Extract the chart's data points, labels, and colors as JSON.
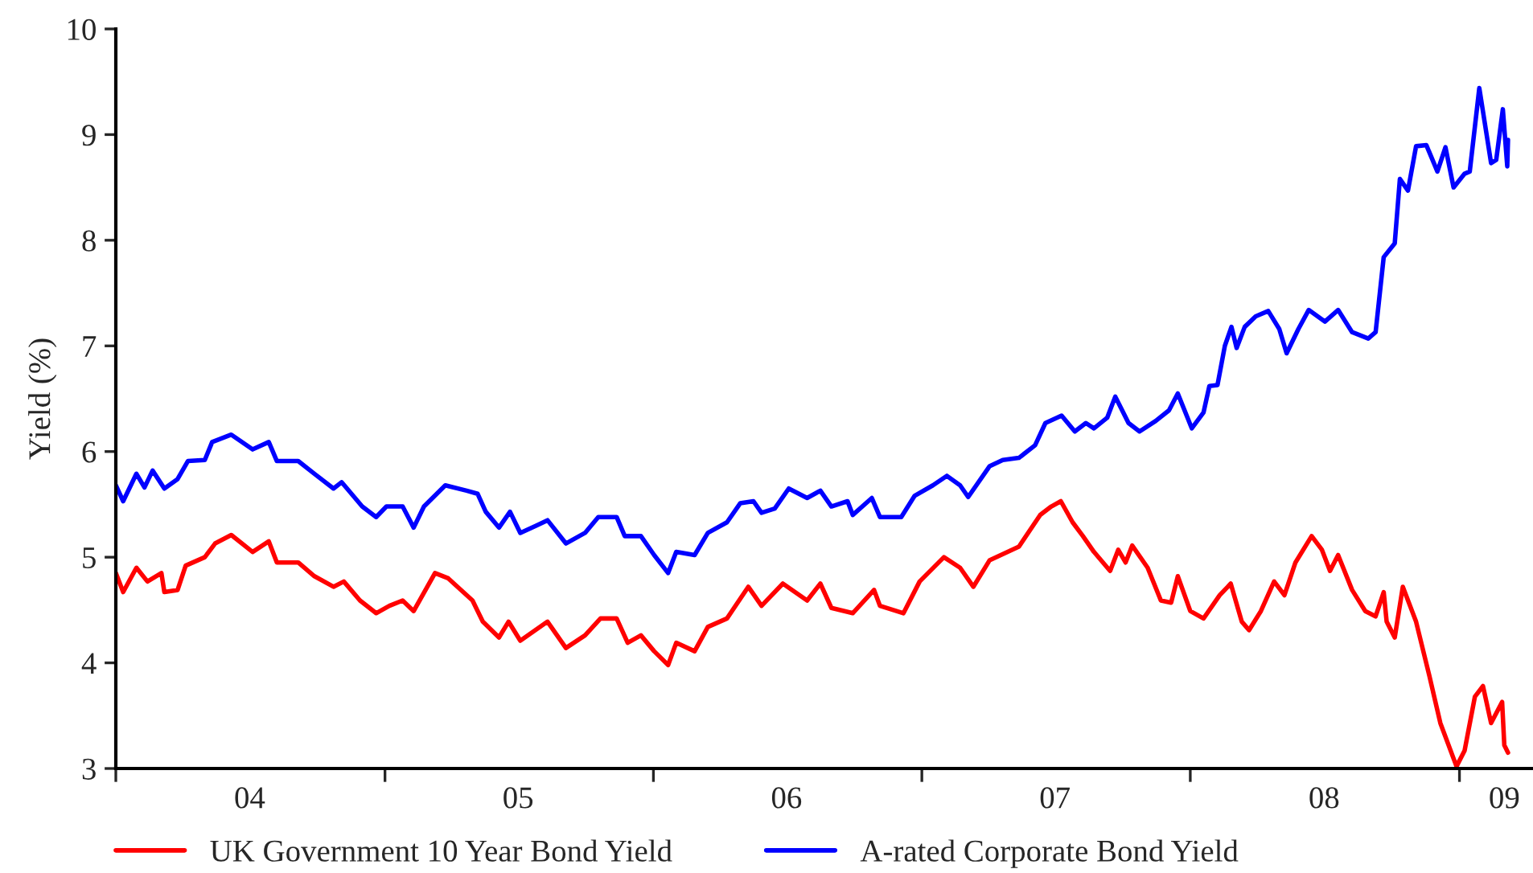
{
  "chart_data": {
    "type": "line",
    "ylabel": "Yield (%)",
    "xlim": [
      "2004-01-01",
      "2009-04-11"
    ],
    "ylim": [
      3,
      10
    ],
    "yticks": [
      3,
      4,
      5,
      6,
      7,
      8,
      9,
      10
    ],
    "xticks": [
      {
        "value": "2004-01-01",
        "label": null
      },
      {
        "value": "2005-01-01",
        "label": null
      },
      {
        "value": "2006-01-01",
        "label": null
      },
      {
        "value": "2007-01-01",
        "label": null
      },
      {
        "value": "2008-01-01",
        "label": null
      },
      {
        "value": "2009-01-01",
        "label": null
      },
      {
        "value": "2004-07-01",
        "label": "04"
      },
      {
        "value": "2005-07-01",
        "label": "05"
      },
      {
        "value": "2006-07-01",
        "label": "06"
      },
      {
        "value": "2007-07-01",
        "label": "07"
      },
      {
        "value": "2008-07-01",
        "label": "08"
      },
      {
        "value": "2009-03-03",
        "label": "09"
      }
    ],
    "grid": false,
    "legend": "bottom",
    "line_style": "solid",
    "marker": "none",
    "series": [
      {
        "name": "UK Government 10 Year Bond Yield",
        "color": "#ff0000",
        "x": [
          "2004-01-01",
          "2004-01-11",
          "2004-01-29",
          "2004-02-13",
          "2004-03-03",
          "2004-03-07",
          "2004-03-25",
          "2004-04-05",
          "2004-05-01",
          "2004-05-15",
          "2004-06-06",
          "2004-07-05",
          "2004-07-27",
          "2004-08-07",
          "2004-09-05",
          "2004-09-27",
          "2004-10-23",
          "2004-11-06",
          "2004-11-28",
          "2004-12-20",
          "2005-01-07",
          "2005-01-25",
          "2005-02-09",
          "2005-03-10",
          "2005-03-28",
          "2005-04-30",
          "2005-05-14",
          "2005-06-05",
          "2005-06-18",
          "2005-07-04",
          "2005-08-10",
          "2005-09-04",
          "2005-09-30",
          "2005-10-21",
          "2005-11-12",
          "2005-11-27",
          "2005-12-15",
          "2006-01-02",
          "2006-01-21",
          "2006-02-01",
          "2006-02-26",
          "2006-03-16",
          "2006-04-11",
          "2006-05-10",
          "2006-05-28",
          "2006-06-26",
          "2006-07-29",
          "2006-08-16",
          "2006-08-31",
          "2006-09-29",
          "2006-10-28",
          "2006-11-05",
          "2006-12-07",
          "2006-12-29",
          "2007-01-31",
          "2007-02-22",
          "2007-03-12",
          "2007-04-03",
          "2007-05-13",
          "2007-06-11",
          "2007-06-26",
          "2007-07-09",
          "2007-07-25",
          "2007-08-08",
          "2007-08-23",
          "2007-09-14",
          "2007-09-25",
          "2007-10-05",
          "2007-10-14",
          "2007-11-04",
          "2007-11-22",
          "2007-12-06",
          "2007-12-15",
          "2008-01-01",
          "2008-01-19",
          "2008-02-10",
          "2008-02-25",
          "2008-03-11",
          "2008-03-21",
          "2008-04-06",
          "2008-04-24",
          "2008-05-08",
          "2008-05-23",
          "2008-06-14",
          "2008-06-28",
          "2008-07-09",
          "2008-07-20",
          "2008-08-08",
          "2008-08-26",
          "2008-09-09",
          "2008-09-20",
          "2008-09-24",
          "2008-10-05",
          "2008-10-16",
          "2008-11-03",
          "2008-11-21",
          "2008-12-06",
          "2008-12-28",
          "2009-01-08",
          "2009-01-22",
          "2009-02-02",
          "2009-02-13",
          "2009-02-28",
          "2009-03-03",
          "2009-03-08"
        ],
        "values": [
          4.85,
          4.67,
          4.9,
          4.77,
          4.85,
          4.67,
          4.69,
          4.92,
          5.0,
          5.13,
          5.21,
          5.05,
          5.15,
          4.95,
          4.95,
          4.82,
          4.72,
          4.77,
          4.59,
          4.47,
          4.54,
          4.59,
          4.49,
          4.85,
          4.8,
          4.59,
          4.39,
          4.24,
          4.39,
          4.21,
          4.39,
          4.14,
          4.26,
          4.42,
          4.42,
          4.19,
          4.26,
          4.11,
          3.98,
          4.19,
          4.11,
          4.34,
          4.42,
          4.72,
          4.54,
          4.75,
          4.59,
          4.75,
          4.52,
          4.47,
          4.69,
          4.54,
          4.47,
          4.77,
          5.0,
          4.9,
          4.72,
          4.97,
          5.1,
          5.4,
          5.48,
          5.53,
          5.33,
          5.2,
          5.05,
          4.87,
          5.07,
          4.95,
          5.11,
          4.9,
          4.59,
          4.57,
          4.82,
          4.49,
          4.42,
          4.64,
          4.75,
          4.39,
          4.31,
          4.49,
          4.77,
          4.64,
          4.95,
          5.2,
          5.07,
          4.87,
          5.02,
          4.69,
          4.49,
          4.44,
          4.67,
          4.39,
          4.24,
          4.72,
          4.39,
          3.88,
          3.43,
          3.02,
          3.17,
          3.68,
          3.78,
          3.43,
          3.63,
          3.22,
          3.15
        ]
      },
      {
        "name": "A-rated Corporate Bond Yield",
        "color": "#0000ff",
        "x": [
          "2004-01-01",
          "2004-01-11",
          "2004-01-29",
          "2004-02-09",
          "2004-02-20",
          "2004-03-07",
          "2004-03-25",
          "2004-04-08",
          "2004-05-01",
          "2004-05-11",
          "2004-06-06",
          "2004-07-05",
          "2004-07-27",
          "2004-08-07",
          "2004-09-05",
          "2004-09-27",
          "2004-10-23",
          "2004-11-03",
          "2004-12-01",
          "2004-12-20",
          "2005-01-03",
          "2005-01-25",
          "2005-02-09",
          "2005-02-23",
          "2005-03-24",
          "2005-04-22",
          "2005-05-07",
          "2005-05-18",
          "2005-06-05",
          "2005-06-20",
          "2005-07-04",
          "2005-07-26",
          "2005-08-10",
          "2005-09-04",
          "2005-09-30",
          "2005-10-18",
          "2005-11-12",
          "2005-11-23",
          "2005-12-15",
          "2006-01-02",
          "2006-01-21",
          "2006-02-01",
          "2006-02-26",
          "2006-03-16",
          "2006-04-11",
          "2006-04-29",
          "2006-05-17",
          "2006-05-28",
          "2006-06-15",
          "2006-07-04",
          "2006-07-29",
          "2006-08-16",
          "2006-08-31",
          "2006-09-22",
          "2006-09-29",
          "2006-10-25",
          "2006-11-05",
          "2006-12-04",
          "2006-12-22",
          "2007-01-16",
          "2007-02-04",
          "2007-02-22",
          "2007-03-05",
          "2007-04-03",
          "2007-04-21",
          "2007-05-13",
          "2007-06-04",
          "2007-06-18",
          "2007-07-10",
          "2007-07-28",
          "2007-08-12",
          "2007-08-23",
          "2007-09-10",
          "2007-09-21",
          "2007-10-09",
          "2007-10-24",
          "2007-11-15",
          "2007-12-03",
          "2007-12-15",
          "2008-01-03",
          "2008-01-19",
          "2008-01-27",
          "2008-02-07",
          "2008-02-17",
          "2008-02-26",
          "2008-03-04",
          "2008-03-15",
          "2008-03-30",
          "2008-04-16",
          "2008-05-01",
          "2008-05-11",
          "2008-05-27",
          "2008-06-10",
          "2008-07-02",
          "2008-07-20",
          "2008-08-08",
          "2008-08-30",
          "2008-09-09",
          "2008-09-20",
          "2008-10-05",
          "2008-10-12",
          "2008-10-23",
          "2008-11-03",
          "2008-11-17",
          "2008-12-02",
          "2008-12-13",
          "2008-12-24",
          "2009-01-08",
          "2009-01-15",
          "2009-01-28",
          "2009-02-04",
          "2009-02-13",
          "2009-02-20",
          "2009-03-01",
          "2009-03-07",
          "2009-03-08"
        ],
        "values": [
          5.68,
          5.53,
          5.79,
          5.66,
          5.82,
          5.65,
          5.74,
          5.91,
          5.92,
          6.09,
          6.16,
          6.02,
          6.09,
          5.91,
          5.91,
          5.79,
          5.65,
          5.71,
          5.48,
          5.38,
          5.48,
          5.48,
          5.28,
          5.48,
          5.68,
          5.63,
          5.6,
          5.43,
          5.28,
          5.43,
          5.23,
          5.3,
          5.35,
          5.13,
          5.23,
          5.38,
          5.38,
          5.2,
          5.2,
          5.02,
          4.85,
          5.05,
          5.02,
          5.23,
          5.33,
          5.51,
          5.53,
          5.42,
          5.46,
          5.65,
          5.56,
          5.63,
          5.48,
          5.53,
          5.4,
          5.56,
          5.38,
          5.38,
          5.58,
          5.68,
          5.77,
          5.68,
          5.57,
          5.86,
          5.92,
          5.94,
          6.06,
          6.27,
          6.34,
          6.19,
          6.27,
          6.22,
          6.32,
          6.52,
          6.27,
          6.19,
          6.29,
          6.39,
          6.55,
          6.22,
          6.37,
          6.62,
          6.63,
          7.0,
          7.18,
          6.98,
          7.18,
          7.28,
          7.33,
          7.16,
          6.93,
          7.16,
          7.34,
          7.23,
          7.34,
          7.13,
          7.07,
          7.13,
          7.84,
          7.97,
          8.58,
          8.47,
          8.89,
          8.9,
          8.65,
          8.88,
          8.5,
          8.63,
          8.65,
          9.44,
          9.13,
          8.73,
          8.76,
          9.24,
          8.7,
          8.95
        ]
      }
    ]
  }
}
